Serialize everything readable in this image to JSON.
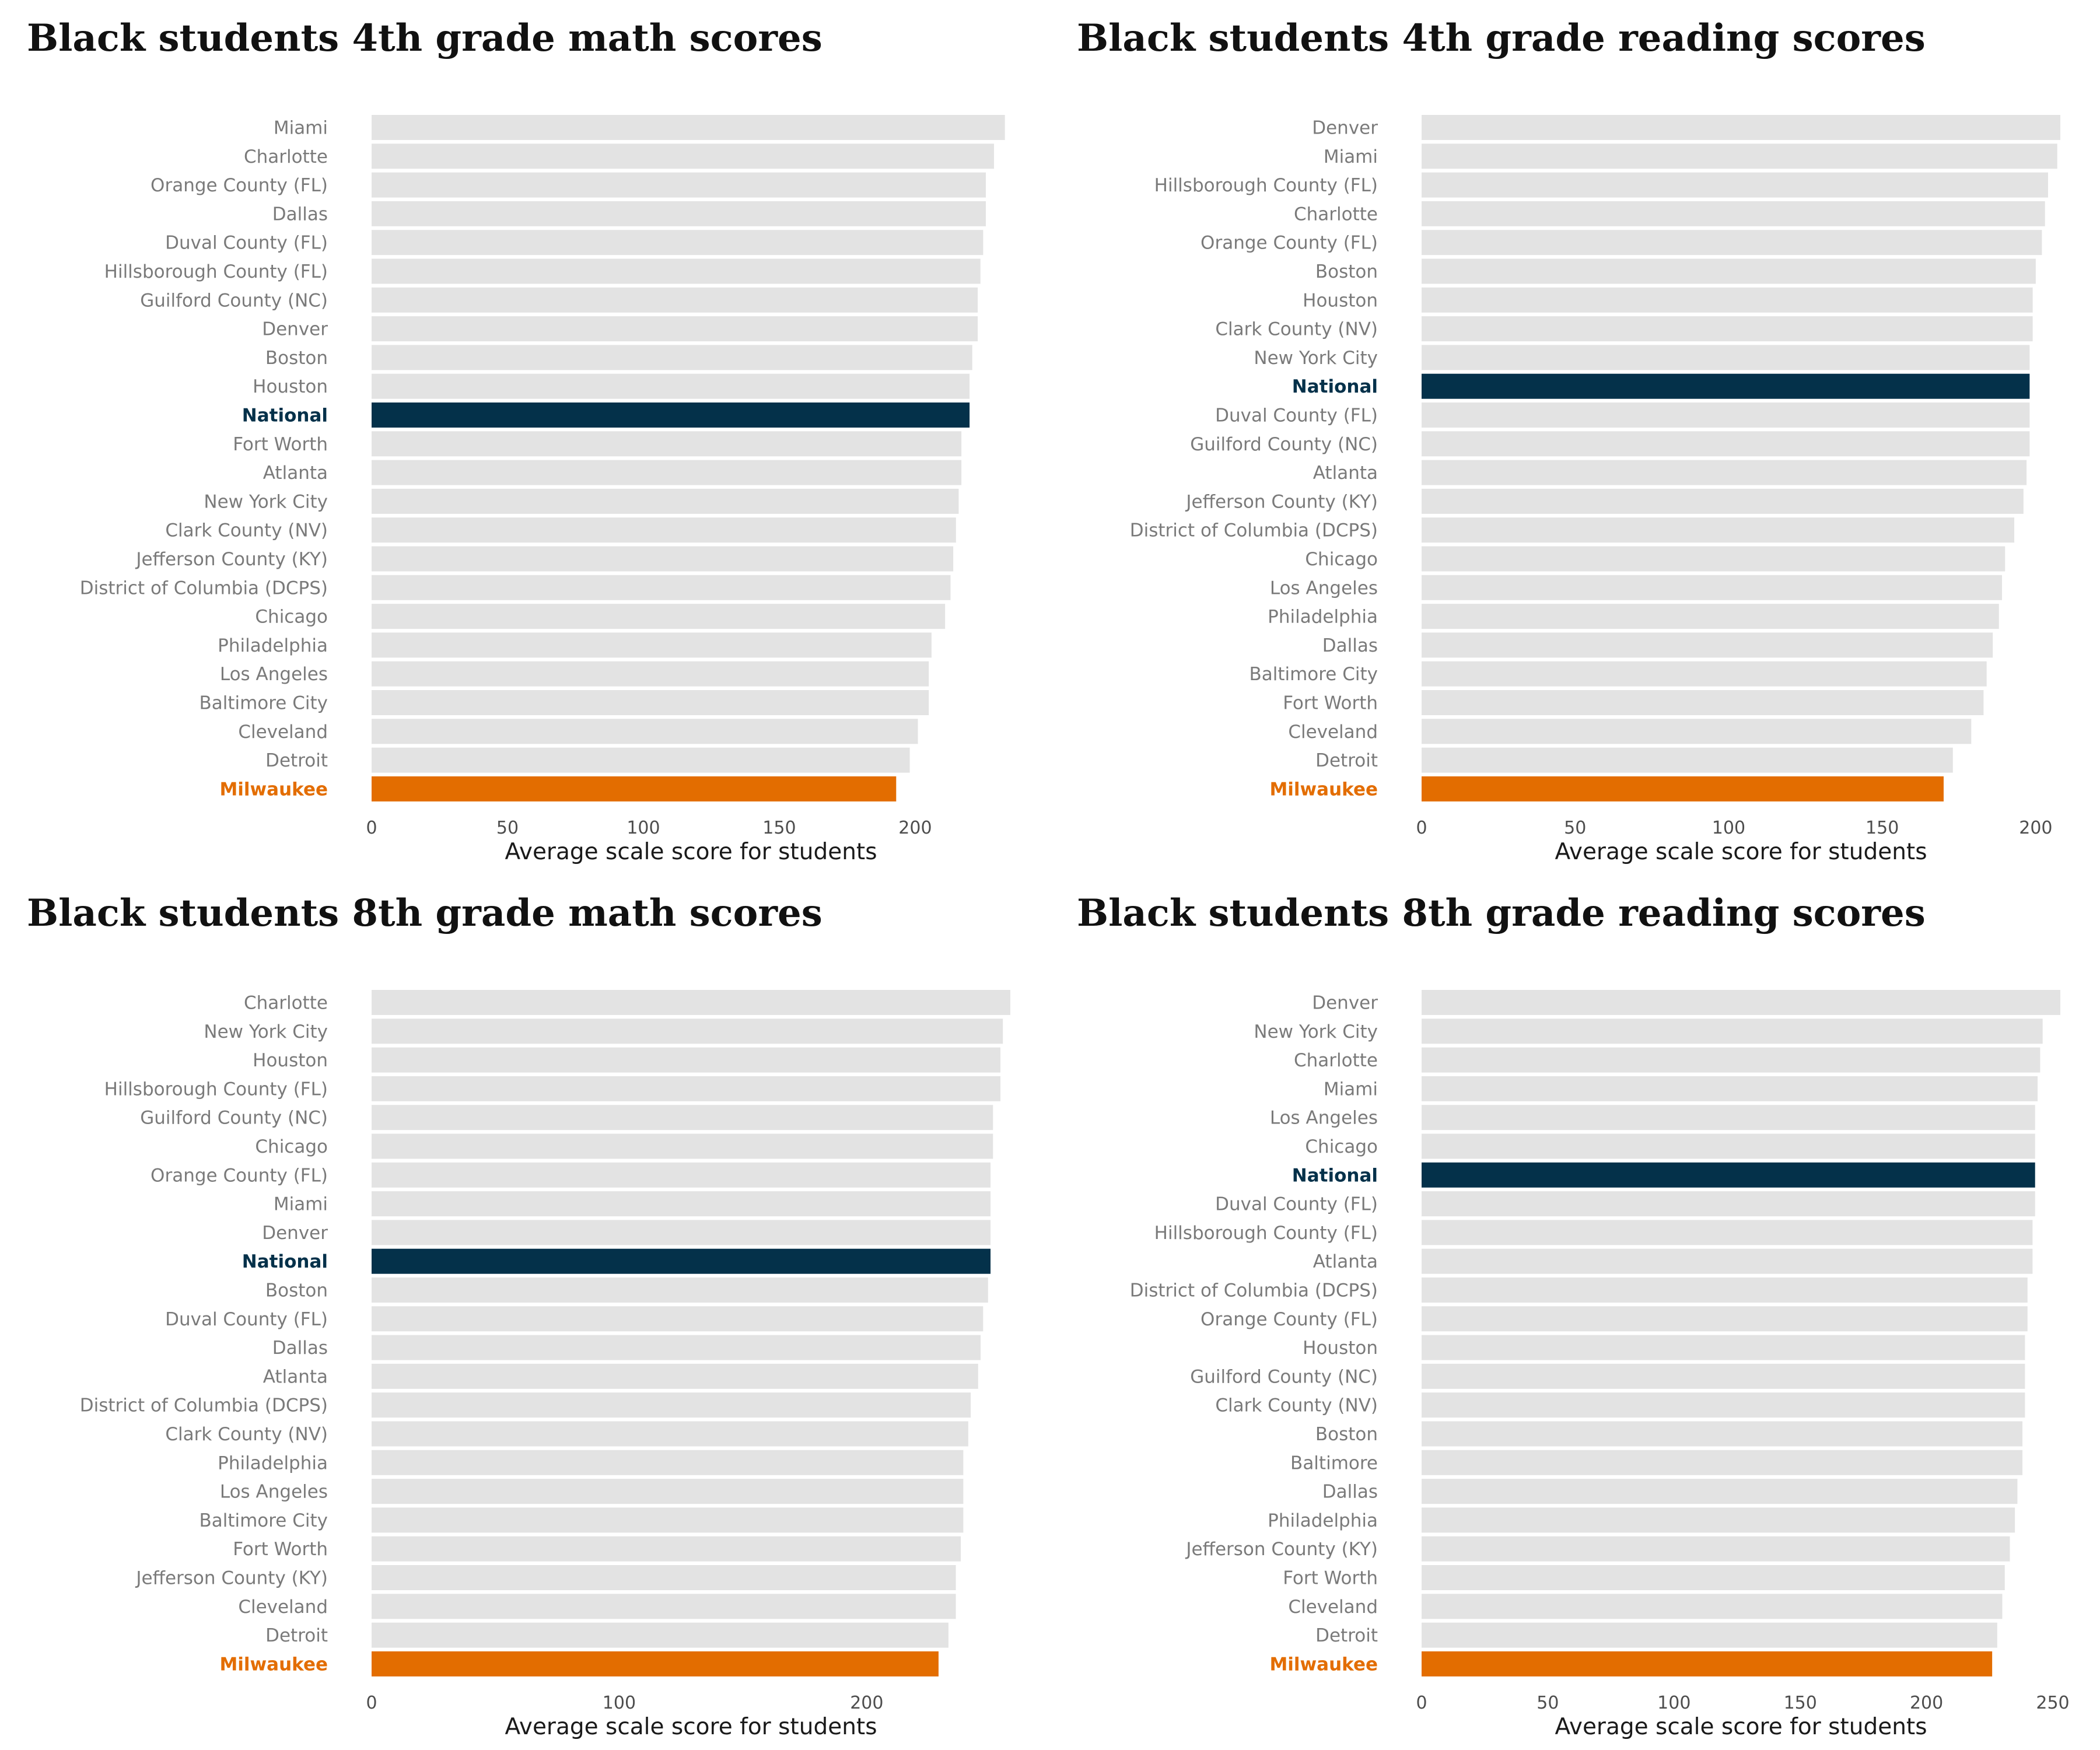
{
  "colors": {
    "default_bar": "#e3e3e3",
    "national_bar": "#04314a",
    "milwaukee_bar": "#e36d00",
    "default_label": "#7a7a7a",
    "national_label": "#04314a",
    "milwaukee_label": "#e36d00"
  },
  "chart_data": [
    {
      "type": "bar",
      "orientation": "horizontal",
      "title": "Black students 4th grade math scores",
      "xlabel": "Average scale score for students",
      "ylabel": "",
      "xlim": [
        0,
        235
      ],
      "xticks": [
        0,
        50,
        100,
        150,
        200
      ],
      "grid": false,
      "highlight": {
        "National": "national",
        "Milwaukee": "milwaukee"
      },
      "categories": [
        "Miami",
        "Charlotte",
        "Orange County (FL)",
        "Dallas",
        "Duval County (FL)",
        "Hillsborough County (FL)",
        "Guilford County (NC)",
        "Denver",
        "Boston",
        "Houston",
        "National",
        "Fort Worth",
        "Atlanta",
        "New York City",
        "Clark County (NV)",
        "Jefferson County (KY)",
        "District of Columbia (DCPS)",
        "Chicago",
        "Philadelphia",
        "Los Angeles",
        "Baltimore City",
        "Cleveland",
        "Detroit",
        "Milwaukee"
      ],
      "values": [
        233,
        229,
        226,
        226,
        225,
        224,
        223,
        223,
        221,
        220,
        220,
        217,
        217,
        216,
        215,
        214,
        213,
        211,
        206,
        205,
        205,
        201,
        198,
        193
      ]
    },
    {
      "type": "bar",
      "orientation": "horizontal",
      "title": "Black students 4th grade reading scores",
      "xlabel": "Average scale score for students",
      "ylabel": "",
      "xlim": [
        0,
        208
      ],
      "xticks": [
        0,
        50,
        100,
        150,
        200
      ],
      "grid": false,
      "highlight": {
        "National": "national",
        "Milwaukee": "milwaukee"
      },
      "categories": [
        "Denver",
        "Miami",
        "Hillsborough County (FL)",
        "Charlotte",
        "Orange County (FL)",
        "Boston",
        "Houston",
        "Clark County (NV)",
        "New York City",
        "National",
        "Duval County (FL)",
        "Guilford County (NC)",
        "Atlanta",
        "Jefferson County (KY)",
        "District of Columbia (DCPS)",
        "Chicago",
        "Los Angeles",
        "Philadelphia",
        "Dallas",
        "Baltimore City",
        "Fort Worth",
        "Cleveland",
        "Detroit",
        "Milwaukee"
      ],
      "values": [
        208,
        207,
        204,
        203,
        202,
        200,
        199,
        199,
        198,
        198,
        198,
        198,
        197,
        196,
        193,
        190,
        189,
        188,
        186,
        184,
        183,
        179,
        173,
        170
      ]
    },
    {
      "type": "bar",
      "orientation": "horizontal",
      "title": "Black students 8th grade math scores",
      "xlabel": "Average scale score for students",
      "ylabel": "",
      "xlim": [
        0,
        258
      ],
      "xticks": [
        0,
        100,
        200
      ],
      "grid": false,
      "highlight": {
        "National": "national",
        "Milwaukee": "milwaukee"
      },
      "categories": [
        "Charlotte",
        "New York City",
        "Houston",
        "Hillsborough County (FL)",
        "Guilford County (NC)",
        "Chicago",
        "Orange County (FL)",
        "Miami",
        "Denver",
        "National",
        "Boston",
        "Duval County (FL)",
        "Dallas",
        "Atlanta",
        "District of Columbia (DCPS)",
        "Clark County (NV)",
        "Philadelphia",
        "Los Angeles",
        "Baltimore City",
        "Fort Worth",
        "Jefferson County (KY)",
        "Cleveland",
        "Detroit",
        "Milwaukee"
      ],
      "values": [
        258,
        255,
        254,
        254,
        251,
        251,
        250,
        250,
        250,
        250,
        249,
        247,
        246,
        245,
        242,
        241,
        239,
        239,
        239,
        238,
        236,
        236,
        233,
        229
      ]
    },
    {
      "type": "bar",
      "orientation": "horizontal",
      "title": "Black students 8th grade reading scores",
      "xlabel": "Average scale score for students",
      "ylabel": "",
      "xlim": [
        0,
        253
      ],
      "xticks": [
        0,
        50,
        100,
        150,
        200,
        250
      ],
      "grid": false,
      "highlight": {
        "National": "national",
        "Milwaukee": "milwaukee"
      },
      "categories": [
        "Denver",
        "New York City",
        "Charlotte",
        "Miami",
        "Los Angeles",
        "Chicago",
        "National",
        "Duval County (FL)",
        "Hillsborough County (FL)",
        "Atlanta",
        "District of Columbia (DCPS)",
        "Orange County (FL)",
        "Houston",
        "Guilford County (NC)",
        "Clark County (NV)",
        "Boston",
        "Baltimore",
        "Dallas",
        "Philadelphia",
        "Jefferson County (KY)",
        "Fort Worth",
        "Cleveland",
        "Detroit",
        "Milwaukee"
      ],
      "values": [
        253,
        246,
        245,
        244,
        243,
        243,
        243,
        243,
        242,
        242,
        240,
        240,
        239,
        239,
        239,
        238,
        238,
        236,
        235,
        233,
        231,
        230,
        228,
        226
      ]
    }
  ]
}
